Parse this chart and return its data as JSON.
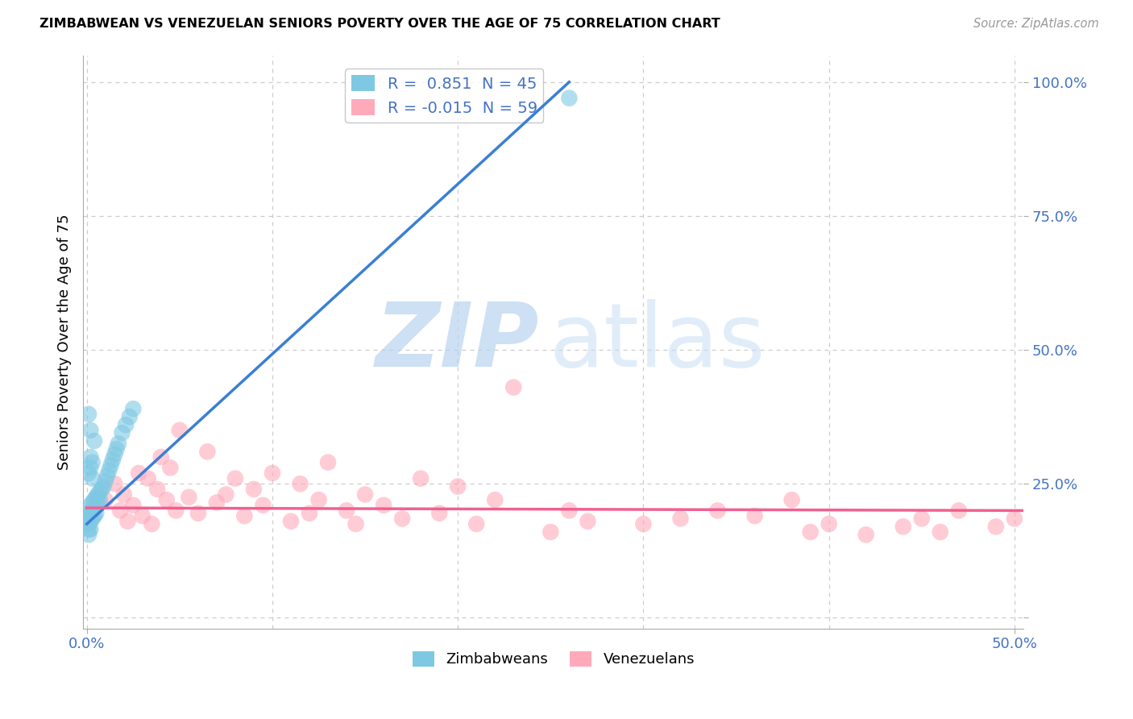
{
  "title": "ZIMBABWEAN VS VENEZUELAN SENIORS POVERTY OVER THE AGE OF 75 CORRELATION CHART",
  "source": "Source: ZipAtlas.com",
  "ylabel": "Seniors Poverty Over the Age of 75",
  "xlim": [
    -0.002,
    0.505
  ],
  "ylim": [
    -0.02,
    1.05
  ],
  "yticks": [
    0.0,
    0.25,
    0.5,
    0.75,
    1.0
  ],
  "ytick_labels": [
    "",
    "25.0%",
    "50.0%",
    "75.0%",
    "100.0%"
  ],
  "xtick_labels_shown": [
    "0.0%",
    "50.0%"
  ],
  "xtick_positions_shown": [
    0.0,
    0.5
  ],
  "grid_yticks": [
    0.0,
    0.25,
    0.5,
    0.75,
    1.0
  ],
  "grid_xticks": [
    0.0,
    0.1,
    0.2,
    0.3,
    0.4,
    0.5
  ],
  "zimbabwe_color": "#7ec8e3",
  "venezuela_color": "#ffaabb",
  "zimbabwe_line_color": "#3a7fd5",
  "venezuela_line_color": "#f06090",
  "R_zimb": 0.851,
  "N_zimb": 45,
  "R_vene": -0.015,
  "N_vene": 59,
  "zimb_line_x0": 0.0,
  "zimb_line_y0": 0.175,
  "zimb_line_x1": 0.26,
  "zimb_line_y1": 1.0,
  "vene_line_x0": 0.0,
  "vene_line_y0": 0.205,
  "vene_line_x1": 0.505,
  "vene_line_y1": 0.2,
  "zimb_scatter_x": [
    0.001,
    0.001,
    0.001,
    0.001,
    0.001,
    0.002,
    0.002,
    0.002,
    0.002,
    0.003,
    0.003,
    0.003,
    0.004,
    0.004,
    0.004,
    0.005,
    0.005,
    0.005,
    0.006,
    0.006,
    0.007,
    0.007,
    0.008,
    0.009,
    0.01,
    0.011,
    0.012,
    0.013,
    0.014,
    0.015,
    0.016,
    0.017,
    0.019,
    0.021,
    0.023,
    0.025,
    0.001,
    0.002,
    0.003,
    0.004,
    0.002,
    0.003,
    0.001,
    0.002,
    0.26
  ],
  "zimb_scatter_y": [
    0.195,
    0.185,
    0.175,
    0.165,
    0.155,
    0.21,
    0.195,
    0.18,
    0.165,
    0.215,
    0.2,
    0.185,
    0.22,
    0.205,
    0.19,
    0.225,
    0.21,
    0.195,
    0.23,
    0.215,
    0.235,
    0.22,
    0.24,
    0.245,
    0.255,
    0.265,
    0.275,
    0.285,
    0.295,
    0.305,
    0.315,
    0.325,
    0.345,
    0.36,
    0.375,
    0.39,
    0.27,
    0.28,
    0.29,
    0.33,
    0.35,
    0.26,
    0.38,
    0.3,
    0.97
  ],
  "vene_scatter_x": [
    0.01,
    0.015,
    0.018,
    0.02,
    0.022,
    0.025,
    0.028,
    0.03,
    0.033,
    0.035,
    0.038,
    0.04,
    0.043,
    0.045,
    0.048,
    0.05,
    0.055,
    0.06,
    0.065,
    0.07,
    0.075,
    0.08,
    0.085,
    0.09,
    0.095,
    0.1,
    0.11,
    0.115,
    0.12,
    0.125,
    0.13,
    0.14,
    0.145,
    0.15,
    0.16,
    0.17,
    0.18,
    0.19,
    0.2,
    0.21,
    0.22,
    0.23,
    0.25,
    0.26,
    0.27,
    0.3,
    0.32,
    0.34,
    0.36,
    0.38,
    0.39,
    0.4,
    0.42,
    0.44,
    0.45,
    0.46,
    0.47,
    0.49,
    0.5
  ],
  "vene_scatter_y": [
    0.22,
    0.25,
    0.2,
    0.23,
    0.18,
    0.21,
    0.27,
    0.19,
    0.26,
    0.175,
    0.24,
    0.3,
    0.22,
    0.28,
    0.2,
    0.35,
    0.225,
    0.195,
    0.31,
    0.215,
    0.23,
    0.26,
    0.19,
    0.24,
    0.21,
    0.27,
    0.18,
    0.25,
    0.195,
    0.22,
    0.29,
    0.2,
    0.175,
    0.23,
    0.21,
    0.185,
    0.26,
    0.195,
    0.245,
    0.175,
    0.22,
    0.43,
    0.16,
    0.2,
    0.18,
    0.175,
    0.185,
    0.2,
    0.19,
    0.22,
    0.16,
    0.175,
    0.155,
    0.17,
    0.185,
    0.16,
    0.2,
    0.17,
    0.185
  ]
}
